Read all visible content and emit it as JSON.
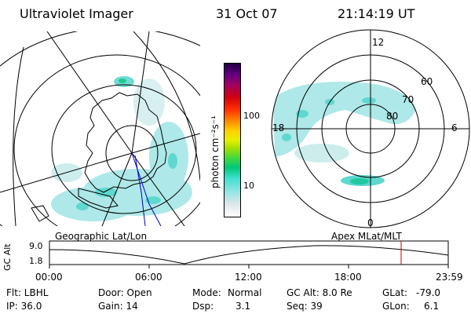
{
  "header": {
    "instrument": "Ultraviolet Imager",
    "date": "31 Oct 07",
    "time": "21:14:19 UT"
  },
  "colorbar": {
    "label": "photon cm⁻²s⁻¹",
    "ticks": [
      "100",
      "10"
    ],
    "ticks_values": [
      100,
      10
    ],
    "colors": [
      "#ffffff",
      "#dfe6ea",
      "#9fe6e6",
      "#40e0d0",
      "#00c878",
      "#40d840",
      "#a8e000",
      "#e8f000",
      "#ffd000",
      "#ff9000",
      "#ff3000",
      "#d00010",
      "#a00060",
      "#600080",
      "#200040"
    ]
  },
  "map_labels": {
    "left": "Geographic Lat/Lon",
    "right": "Apex MLat/MLT"
  },
  "polar": {
    "mlt_labels": {
      "top": "12",
      "left": "18",
      "right": "6",
      "bottom": "0"
    },
    "lat_labels": [
      "60",
      "70",
      "80"
    ]
  },
  "timeline": {
    "ylabel": "GC Alt",
    "y_ticks": [
      "9.0",
      "1.8"
    ],
    "x_ticks": [
      "00:00",
      "06:00",
      "12:00",
      "18:00",
      "23:59"
    ],
    "current_time_marker": "21:14",
    "marker_color": "#cc0000"
  },
  "info": {
    "flt_label": "Flt: LBHL",
    "door_label": "Door: Open",
    "mode_label": "Mode:",
    "mode_value": "Normal",
    "gcalt_label": "GC Alt: 8.0 Re",
    "glat_label": "GLat:",
    "glat_value": "-79.0",
    "ip_label": "IP: 36.0",
    "gain_label": "Gain: 14",
    "dsp_label": "Dsp:",
    "dsp_value": "3.1",
    "seq_label": "Seq: 39",
    "glon_label": "GLon:",
    "glon_value": "6.1"
  }
}
